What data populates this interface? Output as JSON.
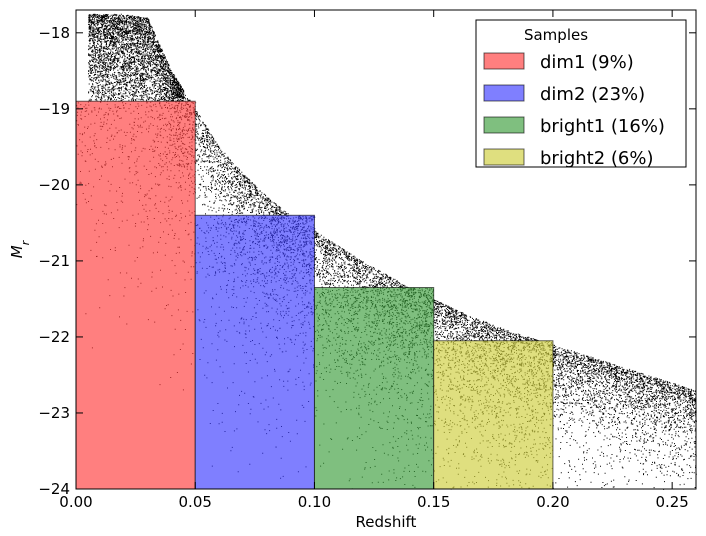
{
  "chart_data": {
    "type": "scatter",
    "xlabel": "Redshift",
    "ylabel": "M_r",
    "xlim": [
      0.0,
      0.26
    ],
    "ylim": [
      -24.0,
      -17.7
    ],
    "y_inverted": true,
    "grid": false,
    "x_ticks": [
      "0.00",
      "0.05",
      "0.10",
      "0.15",
      "0.20",
      "0.25"
    ],
    "y_ticks": [
      "−18",
      "−19",
      "−20",
      "−21",
      "−22",
      "−23",
      "−24"
    ],
    "envelope": {
      "description_free": true,
      "x": [
        0.01,
        0.02,
        0.03,
        0.04,
        0.05,
        0.06,
        0.07,
        0.08,
        0.09,
        0.1,
        0.12,
        0.14,
        0.16,
        0.18,
        0.2,
        0.22,
        0.24,
        0.26
      ],
      "y": [
        -17.75,
        -17.75,
        -17.8,
        -18.5,
        -19.0,
        -19.5,
        -19.85,
        -20.15,
        -20.4,
        -20.6,
        -21.0,
        -21.35,
        -21.65,
        -21.9,
        -22.1,
        -22.3,
        -22.5,
        -22.7
      ]
    },
    "legend": {
      "title": "Samples",
      "position": "top-right"
    },
    "samples": [
      {
        "name": "dim1 (9%)",
        "x_range": [
          0.0,
          0.05
        ],
        "m_limit": -18.9,
        "color": "#ff7f7f",
        "point_color": "#7a0000"
      },
      {
        "name": "dim2 (23%)",
        "x_range": [
          0.05,
          0.1
        ],
        "m_limit": -20.4,
        "color": "#7f7fff",
        "point_color": "#00007a"
      },
      {
        "name": "bright1 (16%)",
        "x_range": [
          0.1,
          0.15
        ],
        "m_limit": -21.35,
        "color": "#7fbf7f",
        "point_color": "#004000"
      },
      {
        "name": "bright2 (6%)",
        "x_range": [
          0.15,
          0.2
        ],
        "m_limit": -22.05,
        "color": "#dfdf7f",
        "point_color": "#606000"
      }
    ]
  }
}
